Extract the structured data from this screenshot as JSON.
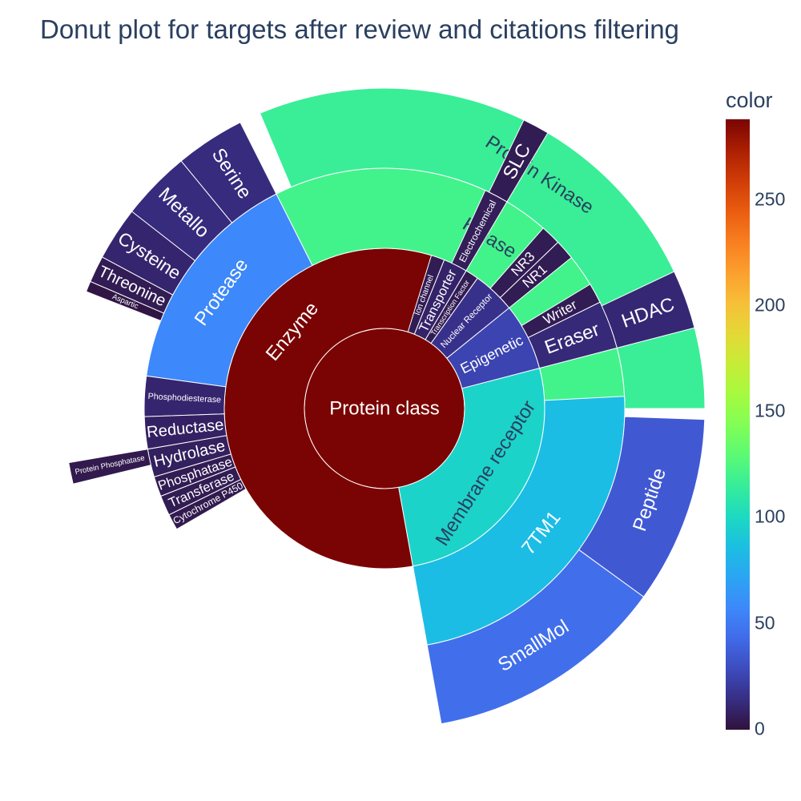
{
  "chart_data": {
    "type": "sunburst",
    "title": "Donut plot for targets after review and citations filtering",
    "root": {
      "name": "Protein class",
      "value": 370,
      "children": [
        {
          "name": "Enzyme",
          "value": 288,
          "children": [
            {
              "name": "Kinase",
              "value": 120,
              "children": [
                {
                  "name": "Protein Kinase",
                  "value": 116
                }
              ]
            },
            {
              "name": "Protease",
              "value": 57,
              "children": [
                {
                  "name": "Serine",
                  "value": 13
                },
                {
                  "name": "Metallo",
                  "value": 13
                },
                {
                  "name": "Cysteine",
                  "value": 10
                },
                {
                  "name": "Threonine",
                  "value": 5
                },
                {
                  "name": "Aspartic",
                  "value": 2
                }
              ]
            },
            {
              "name": "Phosphodiesterase",
              "value": 10
            },
            {
              "name": "Reductase",
              "value": 8
            },
            {
              "name": "Hydrolase",
              "value": 7,
              "children": [
                {
                  "name": "Protein Phosphatase",
                  "value": 4
                }
              ]
            },
            {
              "name": "Phosphatase",
              "value": 5
            },
            {
              "name": "Transferase",
              "value": 5
            },
            {
              "name": "Cytochrome P450",
              "value": 4
            }
          ]
        },
        {
          "name": "Membrane receptor",
          "value": 97,
          "children": [
            {
              "name": "7TM1",
              "value": 85,
              "children": [
                {
                  "name": "SmallMol",
                  "value": 45
                },
                {
                  "name": "Peptide",
                  "value": 35
                }
              ]
            }
          ]
        },
        {
          "name": "Epigenetic",
          "value": 25,
          "children": [
            {
              "name": "Eraser",
              "value": 12,
              "children": [
                {
                  "name": "HDAC",
                  "value": 11
                }
              ]
            },
            {
              "name": "Writer",
              "value": 5
            }
          ]
        },
        {
          "name": "Nuclear Receptor",
          "value": 16,
          "children": [
            {
              "name": "NR1",
              "value": 5
            },
            {
              "name": "NR3",
              "value": 5
            }
          ]
        },
        {
          "name": "Transcription Factor",
          "value": 5
        },
        {
          "name": "Transporter",
          "value": 9,
          "children": [
            {
              "name": "Electrochemical",
              "value": 6,
              "children": [
                {
                  "name": "SLC",
                  "value": 5
                }
              ]
            }
          ]
        },
        {
          "name": "Ion channel",
          "value": 5
        }
      ]
    },
    "colorscale": "turbo",
    "colorbar": {
      "title": "color",
      "range": [
        0,
        288
      ],
      "ticks": [
        0,
        50,
        100,
        150,
        200,
        250
      ]
    }
  }
}
